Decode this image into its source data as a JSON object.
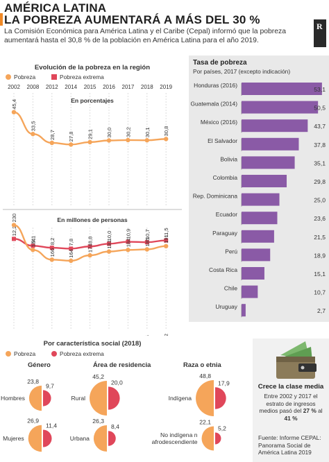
{
  "header": {
    "title_line1": "AMÉRICA LATINA",
    "title_line2": "LA POBREZA AUMENTARÁ A MÁS DEL 30 %",
    "intro": "La Comisión Económica para América Latina y el Caribe (Cepal) informó que la pobreza aumentará hasta el 30,8 % de la población en América Latina para el año 2019.",
    "logo_letter": "R",
    "accent_color": "#f08a28"
  },
  "colors": {
    "pobreza": "#f5a55a",
    "pobreza_extrema": "#e0475a",
    "bar": "#8a5aa6",
    "gray_panel": "#e9e9e9"
  },
  "evolution": {
    "title": "Evolución de la pobreza en la región",
    "legend_pobreza": "Pobreza",
    "legend_extrema": "Pobreza extrema",
    "panel1_label": "En porcentajes",
    "panel2_label": "En millones de personas"
  },
  "rates": {
    "title": "Tasa de pobreza",
    "subtitle": "Por países, 2017 (excepto indicación)"
  },
  "social": {
    "title": "Por característica social (2018)",
    "legend_pobreza": "Pobreza",
    "legend_extrema": "Pobreza extrema",
    "groups": [
      {
        "title": "Género",
        "rows": [
          {
            "label": "Hombres",
            "pobreza": "23,8",
            "extrema": "9,7",
            "p": 23.8,
            "e": 9.7
          },
          {
            "label": "Mujeres",
            "pobreza": "26,9",
            "extrema": "11,4",
            "p": 26.9,
            "e": 11.4
          }
        ]
      },
      {
        "title": "Área de residencia",
        "rows": [
          {
            "label": "Rural",
            "pobreza": "45,2",
            "extrema": "20,0",
            "p": 45.2,
            "e": 20.0
          },
          {
            "label": "Urbana",
            "pobreza": "26,3",
            "extrema": "8,4",
            "p": 26.3,
            "e": 8.4
          }
        ]
      },
      {
        "title": "Raza o etnia",
        "rows": [
          {
            "label": "Indígena",
            "pobreza": "48,8",
            "extrema": "17,9",
            "p": 48.8,
            "e": 17.9
          },
          {
            "label": "No indígena ni afrodescendiente",
            "pobreza": "22,1",
            "extrema": "5,2",
            "p": 22.1,
            "e": 5.2
          }
        ]
      }
    ]
  },
  "note": {
    "title": "Crece la clase media",
    "text_before": "Entre 2002 y 2017 el estrato de ingresos medios pasó del ",
    "bold1": "27 %",
    "mid": " al ",
    "bold2": "41 %",
    "source": "Fuente: Informe CEPAL: Panorama Social de América Latina 2019"
  },
  "chart_data": [
    {
      "type": "line",
      "title": "En porcentajes",
      "x": [
        "2002",
        "2008",
        "2012",
        "2014",
        "2015",
        "2016",
        "2017",
        "2018",
        "2019"
      ],
      "series": [
        {
          "name": "Pobreza",
          "values": [
            45.4,
            33.5,
            28.7,
            27.8,
            29.1,
            30.0,
            30.2,
            30.1,
            30.8
          ],
          "labels": [
            "45,4",
            "33,5",
            "28,7",
            "27,8",
            "29,1",
            "30,0",
            "30,2",
            "30,1",
            "30,8"
          ]
        },
        {
          "name": "Pobreza extrema",
          "values": [
            12.2,
            9.1,
            8.2,
            7.8,
            8.8,
            10.0,
            10.9,
            10.7,
            11.5
          ],
          "labels": [
            "12,2",
            "9,1",
            "8,2",
            "7,8",
            "8,8",
            "10,0",
            "10,9",
            "10,7",
            "11,5"
          ]
        }
      ]
    },
    {
      "type": "line",
      "title": "En millones de personas",
      "x": [
        "2002",
        "2008",
        "2012",
        "2014",
        "2015",
        "2016",
        "2017",
        "2018",
        "2019"
      ],
      "series": [
        {
          "name": "Pobreza",
          "values": [
            230,
            184,
            166,
            164,
            174,
            181,
            184,
            185,
            191
          ],
          "labels": [
            "230",
            "184",
            "166",
            "164",
            "174",
            "181",
            "184",
            "185",
            "191"
          ]
        },
        {
          "name": "Pobreza extrema",
          "values": [
            62,
            50,
            47,
            46,
            52,
            60,
            62,
            66,
            72
          ],
          "labels": [
            "62",
            "50",
            "47",
            "46",
            "52",
            "60",
            "62",
            "66",
            "72"
          ]
        }
      ]
    },
    {
      "type": "bar",
      "title": "Tasa de pobreza",
      "categories": [
        "Honduras (2016)",
        "Guatemala (2014)",
        "México (2016)",
        "El Salvador",
        "Bolivia",
        "Colombia",
        "Rep. Dominicana",
        "Ecuador",
        "Paraguay",
        "Perú",
        "Costa Rica",
        "Chile",
        "Uruguay"
      ],
      "values": [
        53.1,
        50.5,
        43.7,
        37.8,
        35.1,
        29.8,
        25.0,
        23.6,
        21.5,
        18.9,
        15.1,
        10.7,
        2.7
      ],
      "labels": [
        "53,1",
        "50,5",
        "43,7",
        "37,8",
        "35,1",
        "29,8",
        "25,0",
        "23,6",
        "21,5",
        "18,9",
        "15,1",
        "10,7",
        "2,7"
      ]
    }
  ]
}
